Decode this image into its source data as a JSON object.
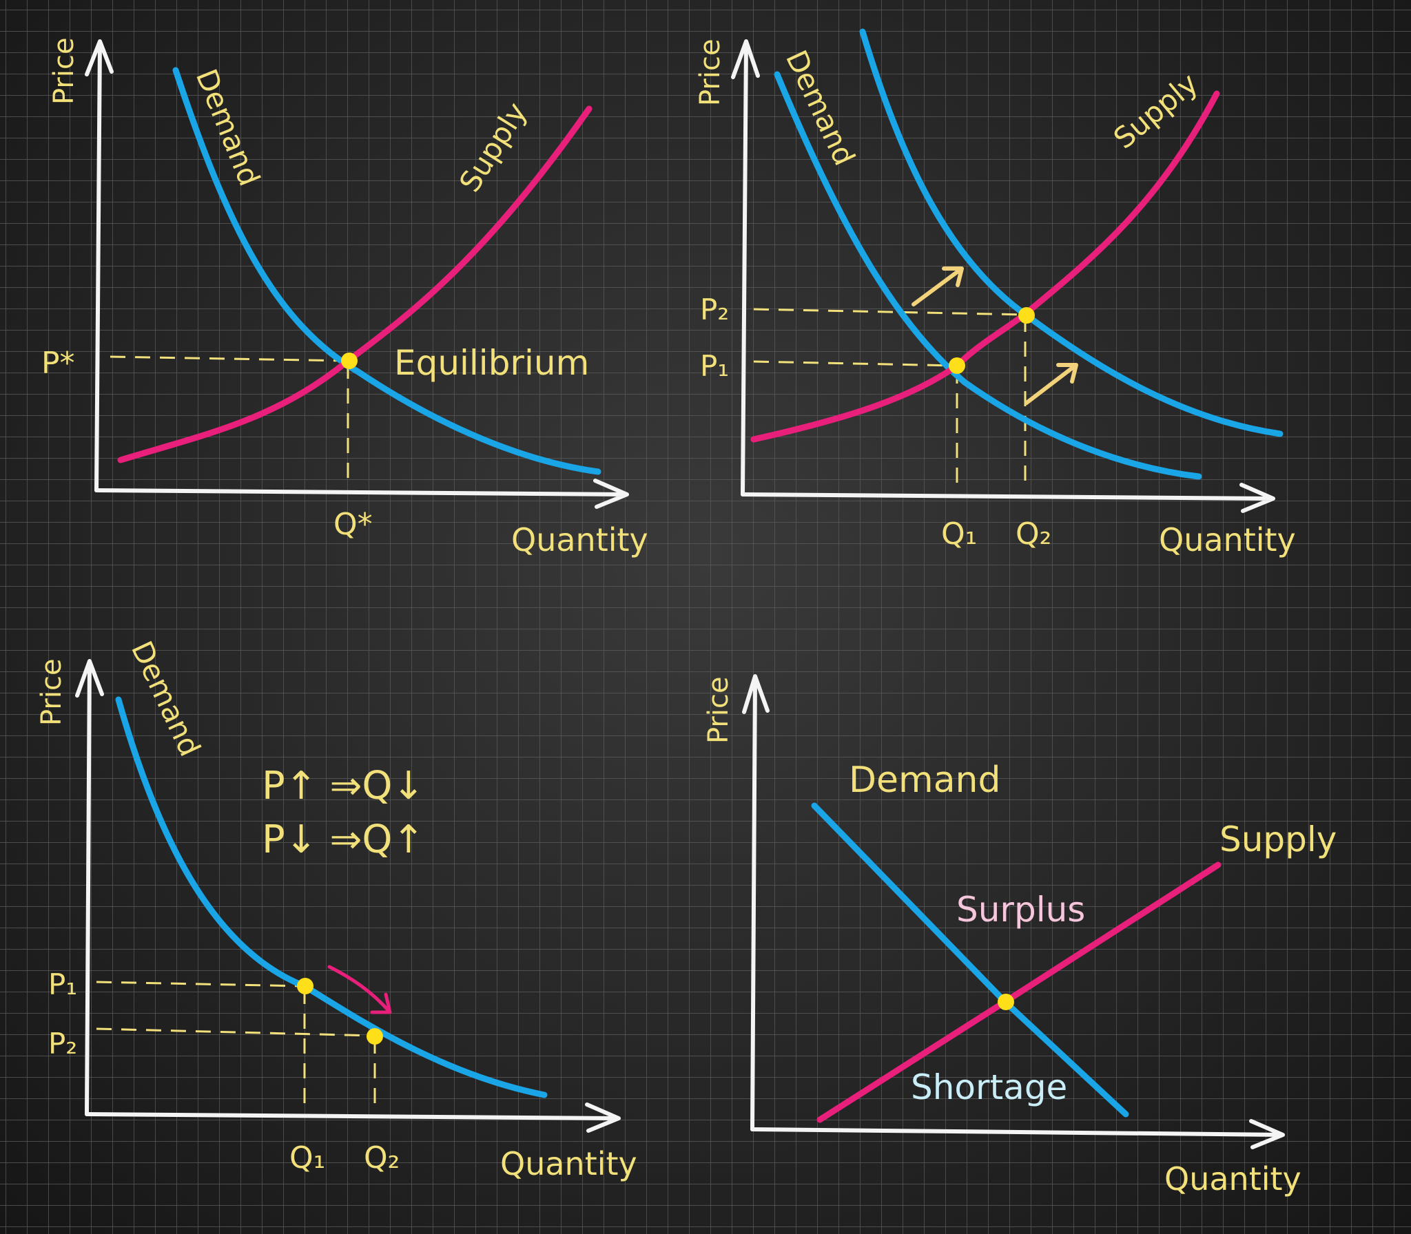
{
  "colors": {
    "background": "#262626",
    "grid": "#5a5a5a",
    "axis": "#f4f4f4",
    "demand": "#1aa5e6",
    "supply": "#e8207c",
    "label": "#f2e07a",
    "point": "#ffde1a",
    "surplus_label": "#f6c6dc",
    "shortage_label": "#c9eef8"
  },
  "panels": {
    "equilibrium": {
      "y_axis": "Price",
      "x_axis": "Quantity",
      "demand": "Demand",
      "supply": "Supply",
      "price_label": "P*",
      "quantity_label": "Q*",
      "point_label": "Equilibrium"
    },
    "demand_shift": {
      "y_axis": "Price",
      "x_axis": "Quantity",
      "demand": "Demand",
      "supply": "Supply",
      "p1": "P₁",
      "p2": "P₂",
      "q1": "Q₁",
      "q2": "Q₂"
    },
    "law_of_demand": {
      "y_axis": "Price",
      "x_axis": "Quantity",
      "demand": "Demand",
      "rule1": "P↑ ⇒Q↓",
      "rule2": "P↓ ⇒Q↑",
      "p1": "P₁",
      "p2": "P₂",
      "q1": "Q₁",
      "q2": "Q₂"
    },
    "surplus_shortage": {
      "y_axis": "Price",
      "x_axis": "Quantity",
      "demand": "Demand",
      "supply": "Supply",
      "surplus": "Surplus",
      "shortage": "Shortage"
    }
  }
}
